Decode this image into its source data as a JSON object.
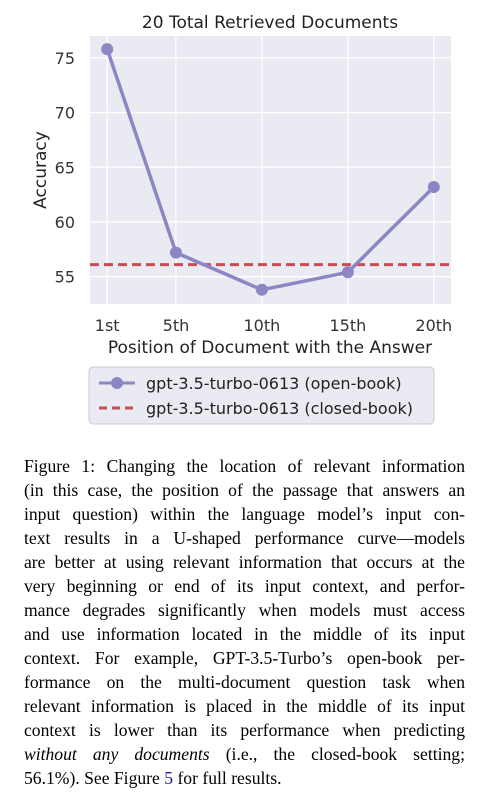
{
  "chart_data": {
    "type": "line",
    "title": "20 Total Retrieved Documents",
    "xlabel": "Position of Document with the Answer",
    "ylabel": "Accuracy",
    "categories": [
      "1st",
      "5th",
      "10th",
      "15th",
      "20th"
    ],
    "x": [
      1,
      5,
      10,
      15,
      20
    ],
    "xlim": [
      0,
      21
    ],
    "ylim": [
      52.5,
      77
    ],
    "yticks": [
      55,
      60,
      65,
      70,
      75
    ],
    "grid": true,
    "legend_position": "below",
    "series": [
      {
        "name": "gpt-3.5-turbo-0613 (open-book)",
        "values": [
          75.8,
          57.2,
          53.8,
          55.4,
          63.2
        ],
        "color": "#8c86c4",
        "style": "solid-with-markers"
      },
      {
        "name": "gpt-3.5-turbo-0613 (closed-book)",
        "values": [
          56.1,
          56.1,
          56.1,
          56.1,
          56.1
        ],
        "color": "#c44e52",
        "style": "dashed"
      }
    ]
  },
  "caption": {
    "lines": [
      "Figure 1: Changing the location of relevant information",
      "(in this case, the position of the passage that answers an",
      "input question) within the language model’s input con-",
      "text results in a U-shaped performance curve—models",
      "are better at using relevant information that occurs at the",
      "very beginning or end of its input context, and perfor-",
      "mance degrades significantly when models must access",
      "and use information located in the middle of its input",
      "context. For example, GPT-3.5-Turbo’s open-book per-",
      "formance on the multi-document question task when",
      "relevant information is placed in the middle of its input",
      "context is lower than its performance when predicting"
    ],
    "line13_italic": "without any documents",
    "line13_rest": " (i.e., the closed-book setting;",
    "line14_start": "56.1%). See Figure ",
    "line14_ref": "5",
    "line14_end": " for full results."
  }
}
